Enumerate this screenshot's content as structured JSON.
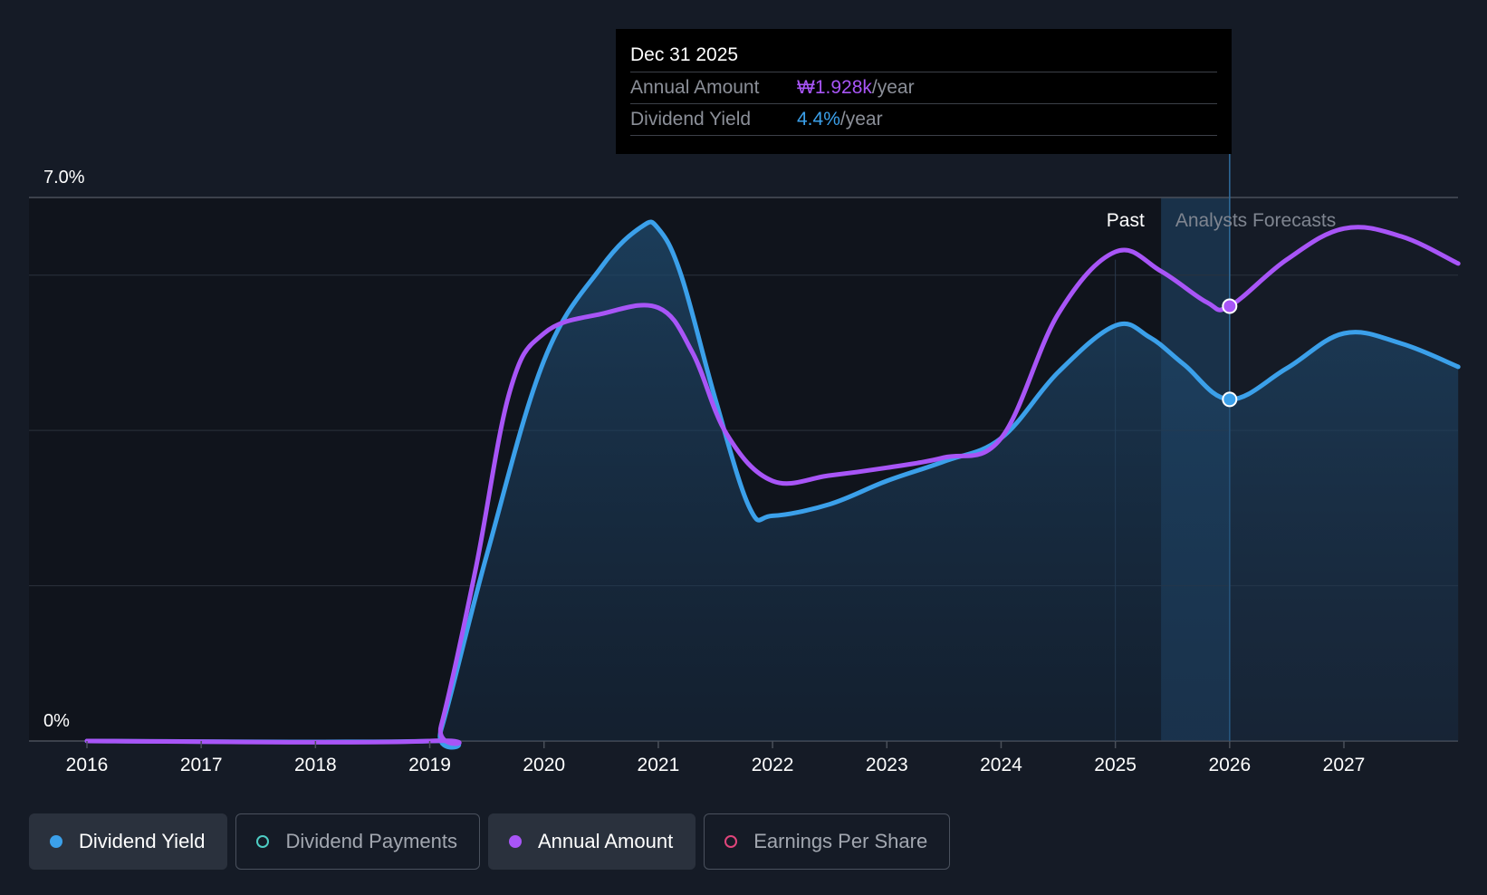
{
  "tooltip": {
    "date": "Dec 31 2025",
    "rows": [
      {
        "label": "Annual Amount",
        "value": "₩1.928k",
        "suffix": "/year"
      },
      {
        "label": "Dividend Yield",
        "value": "4.4%",
        "suffix": "/year"
      }
    ]
  },
  "chart_data": {
    "type": "area",
    "x_min": 2015.5,
    "x_max": 2028.0,
    "ylim": [
      0,
      7.0
    ],
    "y_tick_labels": [
      "7.0%",
      "0%"
    ],
    "x_ticks": [
      2016,
      2017,
      2018,
      2019,
      2020,
      2021,
      2022,
      2023,
      2024,
      2025,
      2026,
      2027
    ],
    "x_tick_labels": [
      "2016",
      "2017",
      "2018",
      "2019",
      "2020",
      "2021",
      "2022",
      "2023",
      "2024",
      "2025",
      "2026",
      "2027"
    ],
    "gridlines_y": [
      0,
      2,
      4,
      6,
      7
    ],
    "past_label": "Past",
    "forecast_label": "Analysts Forecasts",
    "forecast_start": 2025.4,
    "cursor_x": 2026.0,
    "series": [
      {
        "name": "Dividend Yield",
        "color": "#3ba0ea",
        "filled": true,
        "points": [
          [
            2016,
            0
          ],
          [
            2019,
            0
          ],
          [
            2019.1,
            0.15
          ],
          [
            2019.5,
            2.4
          ],
          [
            2020,
            4.9
          ],
          [
            2020.5,
            6.1
          ],
          [
            2020.85,
            6.62
          ],
          [
            2021,
            6.6
          ],
          [
            2021.2,
            6.0
          ],
          [
            2021.5,
            4.4
          ],
          [
            2021.8,
            3.0
          ],
          [
            2022,
            2.9
          ],
          [
            2022.5,
            3.05
          ],
          [
            2023,
            3.35
          ],
          [
            2023.5,
            3.6
          ],
          [
            2024,
            3.9
          ],
          [
            2024.5,
            4.75
          ],
          [
            2025,
            5.35
          ],
          [
            2025.3,
            5.2
          ],
          [
            2025.6,
            4.85
          ],
          [
            2026,
            4.4
          ],
          [
            2026.5,
            4.8
          ],
          [
            2027,
            5.25
          ],
          [
            2027.5,
            5.12
          ],
          [
            2028,
            4.82
          ]
        ]
      },
      {
        "name": "Annual Amount",
        "color": "#a855f7",
        "filled": false,
        "points": [
          [
            2016,
            0
          ],
          [
            2019,
            0
          ],
          [
            2019.1,
            0.2
          ],
          [
            2019.4,
            2.2
          ],
          [
            2019.7,
            4.5
          ],
          [
            2020,
            5.25
          ],
          [
            2020.5,
            5.5
          ],
          [
            2021,
            5.58
          ],
          [
            2021.3,
            5.0
          ],
          [
            2021.6,
            3.95
          ],
          [
            2022,
            3.35
          ],
          [
            2022.5,
            3.42
          ],
          [
            2023,
            3.52
          ],
          [
            2023.5,
            3.65
          ],
          [
            2024,
            3.9
          ],
          [
            2024.5,
            5.5
          ],
          [
            2025,
            6.3
          ],
          [
            2025.4,
            6.05
          ],
          [
            2025.8,
            5.65
          ],
          [
            2026,
            5.6
          ],
          [
            2026.5,
            6.2
          ],
          [
            2027,
            6.6
          ],
          [
            2027.5,
            6.5
          ],
          [
            2028,
            6.15
          ]
        ]
      }
    ]
  },
  "legend": [
    {
      "label": "Dividend Yield",
      "color": "#3ba0ea",
      "active": true
    },
    {
      "label": "Dividend Payments",
      "color": "#4ecdc4",
      "active": false
    },
    {
      "label": "Annual Amount",
      "color": "#a855f7",
      "active": true
    },
    {
      "label": "Earnings Per Share",
      "color": "#e0457b",
      "active": false
    }
  ]
}
